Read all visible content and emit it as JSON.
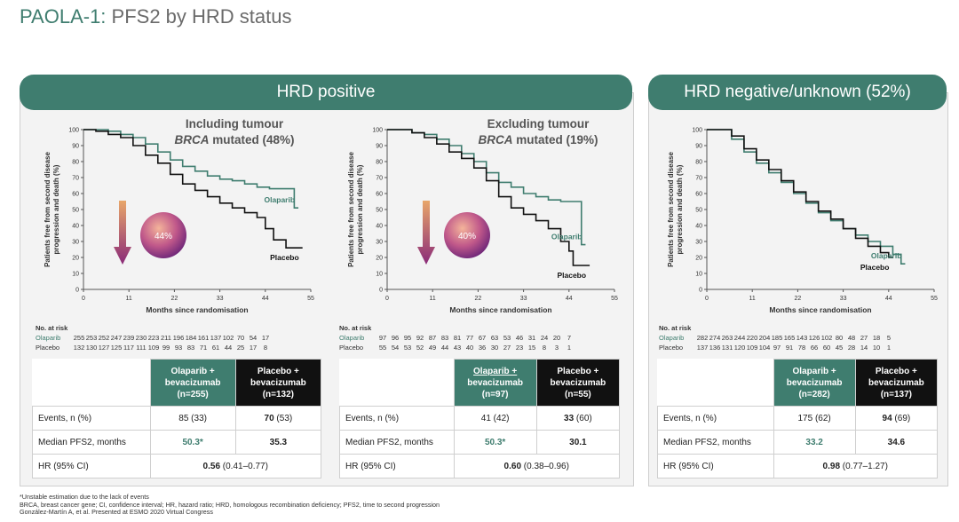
{
  "title": {
    "prefix": "PAOLA-1:",
    "rest": " PFS2 by HRD status"
  },
  "panels": [
    {
      "header": "HRD positive"
    },
    {
      "header": "HRD negative/unknown (52%)"
    }
  ],
  "colors": {
    "olaparib": "#3f7d6f",
    "placebo": "#111111",
    "arrow_top": "#e8a66a",
    "arrow_bottom": "#8a2a78"
  },
  "chart_data": [
    {
      "type": "line",
      "title_line1": "Including tumour",
      "title_line2_italic": "BRCA",
      "title_line2_rest": " mutated (48%)",
      "xlabel": "Months since randomisation",
      "ylabel": "Patients free from second disease progression and death (%)",
      "xlim": [
        0,
        55
      ],
      "ylim": [
        0,
        100
      ],
      "xticks": [
        0,
        11,
        22,
        33,
        44,
        55
      ],
      "yticks": [
        0,
        10,
        20,
        30,
        40,
        50,
        60,
        70,
        80,
        90,
        100
      ],
      "hr_reduction": "44%",
      "series": [
        {
          "name": "Olaparib",
          "color": "#3f7d6f",
          "x": [
            0,
            3,
            6,
            9,
            12,
            15,
            18,
            21,
            24,
            27,
            30,
            33,
            36,
            39,
            42,
            45,
            47,
            50,
            51,
            51.5,
            52
          ],
          "y": [
            100,
            100,
            99,
            97,
            95,
            91,
            86,
            81,
            77,
            74,
            71,
            69,
            68,
            66,
            64,
            63,
            63,
            63,
            51,
            51,
            51
          ]
        },
        {
          "name": "Placebo",
          "color": "#111111",
          "x": [
            0,
            3,
            6,
            9,
            12,
            15,
            18,
            21,
            24,
            27,
            30,
            33,
            36,
            39,
            42,
            44,
            46,
            48,
            49,
            51,
            53
          ],
          "y": [
            100,
            99,
            97,
            95,
            90,
            84,
            79,
            72,
            66,
            62,
            58,
            54,
            51,
            48,
            45,
            38,
            31,
            31,
            26,
            26,
            26
          ]
        }
      ]
    },
    {
      "type": "line",
      "title_line1": "Excluding tumour",
      "title_line2_italic": "BRCA",
      "title_line2_rest": " mutated (19%)",
      "xlabel": "Months since randomisation",
      "ylabel": "Patients free from second disease progression and death (%)",
      "xlim": [
        0,
        55
      ],
      "ylim": [
        0,
        100
      ],
      "xticks": [
        0,
        11,
        22,
        33,
        44,
        55
      ],
      "yticks": [
        0,
        10,
        20,
        30,
        40,
        50,
        60,
        70,
        80,
        90,
        100
      ],
      "hr_reduction": "40%",
      "series": [
        {
          "name": "Olaparib",
          "color": "#3f7d6f",
          "x": [
            0,
            3,
            6,
            9,
            12,
            15,
            18,
            21,
            24,
            27,
            30,
            33,
            36,
            39,
            42,
            45,
            47,
            47,
            48
          ],
          "y": [
            100,
            100,
            98,
            97,
            94,
            90,
            85,
            80,
            73,
            67,
            64,
            60,
            58,
            56,
            55,
            55,
            55,
            28,
            28
          ]
        },
        {
          "name": "Placebo",
          "color": "#111111",
          "x": [
            0,
            3,
            6,
            9,
            12,
            15,
            18,
            21,
            24,
            27,
            30,
            33,
            36,
            39,
            42,
            44,
            45,
            47,
            49
          ],
          "y": [
            100,
            100,
            98,
            95,
            91,
            86,
            82,
            76,
            68,
            58,
            51,
            47,
            43,
            38,
            30,
            24,
            15,
            15,
            15
          ]
        }
      ]
    },
    {
      "type": "line",
      "xlabel": "Months since randomisation",
      "ylabel": "Patients free from second disease progression and death (%)",
      "xlim": [
        0,
        55
      ],
      "ylim": [
        0,
        100
      ],
      "xticks": [
        0,
        11,
        22,
        33,
        44,
        55
      ],
      "yticks": [
        0,
        10,
        20,
        30,
        40,
        50,
        60,
        70,
        80,
        90,
        100
      ],
      "series": [
        {
          "name": "Olaparib",
          "color": "#3f7d6f",
          "x": [
            0,
            3,
            6,
            9,
            12,
            15,
            18,
            21,
            24,
            27,
            30,
            33,
            36,
            39,
            42,
            45,
            47,
            48
          ],
          "y": [
            100,
            100,
            94,
            86,
            79,
            73,
            67,
            60,
            54,
            48,
            43,
            38,
            34,
            30,
            27,
            22,
            16,
            16
          ]
        },
        {
          "name": "Placebo",
          "color": "#111111",
          "x": [
            0,
            3,
            6,
            9,
            12,
            15,
            18,
            21,
            24,
            27,
            30,
            33,
            36,
            39,
            42,
            44,
            45
          ],
          "y": [
            100,
            100,
            96,
            88,
            81,
            75,
            68,
            61,
            55,
            49,
            44,
            38,
            32,
            27,
            23,
            20,
            20
          ]
        }
      ]
    }
  ],
  "risk_tables": [
    {
      "header": "No. at risk",
      "rows": [
        {
          "label": "Olaparib",
          "values": [
            "255",
            "253",
            "252",
            "247",
            "239",
            "230",
            "223",
            "211",
            "196",
            "184",
            "161",
            "137",
            "102",
            "70",
            "54",
            "17"
          ]
        },
        {
          "label": "Placebo",
          "values": [
            "132",
            "130",
            "127",
            "125",
            "117",
            "111",
            "109",
            "99",
            "93",
            "83",
            "71",
            "61",
            "44",
            "25",
            "17",
            "8"
          ]
        }
      ]
    },
    {
      "header": "No. at risk",
      "rows": [
        {
          "label": "Olaparib",
          "values": [
            "97",
            "96",
            "95",
            "92",
            "87",
            "83",
            "81",
            "77",
            "67",
            "63",
            "53",
            "46",
            "31",
            "24",
            "20",
            "7"
          ]
        },
        {
          "label": "Placebo",
          "values": [
            "55",
            "54",
            "53",
            "52",
            "49",
            "44",
            "43",
            "40",
            "36",
            "30",
            "27",
            "23",
            "15",
            "8",
            "3",
            "1"
          ]
        }
      ]
    },
    {
      "header": "No. at risk",
      "rows": [
        {
          "label": "Olaparib",
          "values": [
            "282",
            "274",
            "263",
            "244",
            "220",
            "204",
            "185",
            "165",
            "143",
            "126",
            "102",
            "80",
            "48",
            "27",
            "18",
            "5"
          ]
        },
        {
          "label": "Placebo",
          "values": [
            "137",
            "136",
            "131",
            "120",
            "109",
            "104",
            "97",
            "91",
            "78",
            "66",
            "60",
            "45",
            "28",
            "14",
            "10",
            "1"
          ]
        }
      ]
    }
  ],
  "results": [
    {
      "col_ola": [
        "Olaparib +",
        "bevacizumab",
        "(n=255)"
      ],
      "col_pla": [
        "Placebo +",
        "bevacizumab",
        "(n=132)"
      ],
      "events_label": "Events, n (%)",
      "events_ola_n": "85",
      "events_ola_p": " (33)",
      "events_pla_n": "70",
      "events_pla_p": " (53)",
      "median_label": "Median PFS2, months",
      "median_ola": "50.3*",
      "median_pla": "35.3",
      "hr_label": "HR (95% CI)",
      "hr_val": "0.56",
      "hr_ci": " (0.41–0.77)"
    },
    {
      "col_ola": [
        "Olaparib +",
        "bevacizumab",
        "(n=97)"
      ],
      "col_pla": [
        "Placebo +",
        "bevacizumab",
        "(n=55)"
      ],
      "events_label": "Events, n (%)",
      "events_ola_n": "41",
      "events_ola_p": " (42)",
      "events_pla_n": "33",
      "events_pla_p": " (60)",
      "median_label": "Median PFS2, months",
      "median_ola": "50.3*",
      "median_pla": "30.1",
      "hr_label": "HR (95% CI)",
      "hr_val": "0.60",
      "hr_ci": " (0.38–0.96)"
    },
    {
      "col_ola": [
        "Olaparib +",
        "bevacizumab",
        "(n=282)"
      ],
      "col_pla": [
        "Placebo +",
        "bevacizumab",
        "(n=137)"
      ],
      "events_label": "Events, n (%)",
      "events_ola_n": "175",
      "events_ola_p": " (62)",
      "events_pla_n": "94",
      "events_pla_p": " (69)",
      "median_label": "Median PFS2, months",
      "median_ola": "33.2",
      "median_pla": "34.6",
      "hr_label": "HR (95% CI)",
      "hr_val": "0.98",
      "hr_ci": " (0.77–1.27)"
    }
  ],
  "footnotes": [
    "*Unstable estimation due to the lack of events",
    "BRCA, breast cancer gene; CI, confidence interval; HR, hazard ratio; HRD, homologous recombination deficiency; PFS2, time to second progression",
    "González-Martín A, et al. Presented at ESMO 2020 Virtual Congress"
  ]
}
